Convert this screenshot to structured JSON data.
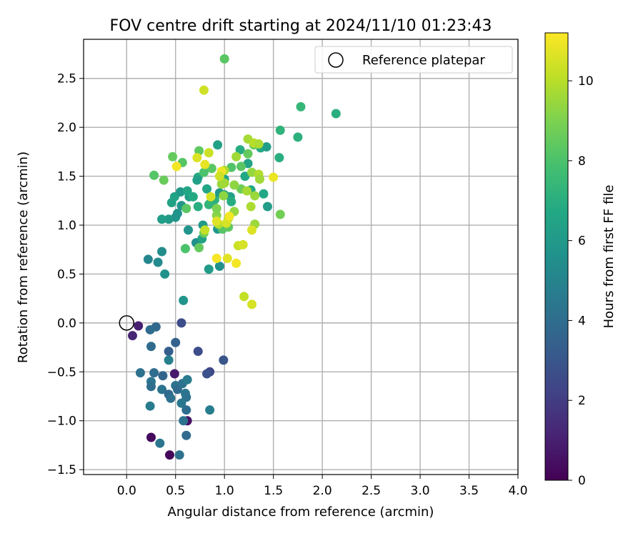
{
  "chart_data": {
    "type": "scatter",
    "title": "FOV centre drift starting at 2024/11/10 01:23:43",
    "xlabel": "Angular distance from reference (arcmin)",
    "ylabel": "Rotation from reference (arcmin)",
    "xlim": [
      -0.44,
      4.0
    ],
    "ylim": [
      -1.55,
      2.9
    ],
    "xticks": [
      0.0,
      0.5,
      1.0,
      1.5,
      2.0,
      2.5,
      3.0,
      3.5,
      4.0
    ],
    "xtick_labels": [
      "0.0",
      "0.5",
      "1.0",
      "1.5",
      "2.0",
      "2.5",
      "3.0",
      "3.5",
      "4.0"
    ],
    "yticks": [
      -1.5,
      -1.0,
      -0.5,
      0.0,
      0.5,
      1.0,
      1.5,
      2.0,
      2.5
    ],
    "ytick_labels": [
      "−1.5",
      "−1.0",
      "−0.5",
      "0.0",
      "0.5",
      "1.0",
      "1.5",
      "2.0",
      "2.5"
    ],
    "grid": true,
    "legend": {
      "placement": "top-right",
      "entries": [
        "Reference platepar"
      ]
    },
    "reference_point": {
      "x": 0.0,
      "y": 0.0,
      "label": "Reference platepar"
    },
    "colorbar": {
      "label": "Hours from first FF file",
      "colormap": "viridis",
      "range": [
        0,
        11.2
      ],
      "ticks": [
        0,
        2,
        4,
        6,
        8,
        10
      ],
      "tick_labels": [
        "0",
        "2",
        "4",
        "6",
        "8",
        "10"
      ]
    },
    "points": [
      [
        0.44,
        -1.35,
        0.2
      ],
      [
        0.25,
        -1.17,
        0.3
      ],
      [
        0.62,
        -1.0,
        0.5
      ],
      [
        0.49,
        -0.52,
        0.8
      ],
      [
        0.12,
        -0.03,
        1.0
      ],
      [
        0.06,
        -0.13,
        1.2
      ],
      [
        0.56,
        0.0,
        2.6
      ],
      [
        0.85,
        -0.5,
        2.4
      ],
      [
        0.73,
        -0.29,
        2.6
      ],
      [
        0.82,
        -0.52,
        2.8
      ],
      [
        0.99,
        -0.38,
        3.0
      ],
      [
        0.43,
        -0.29,
        3.3
      ],
      [
        0.5,
        -0.2,
        3.5
      ],
      [
        0.3,
        -0.04,
        3.8
      ],
      [
        0.24,
        -0.07,
        4.0
      ],
      [
        0.25,
        -0.24,
        3.9
      ],
      [
        0.14,
        -0.51,
        4.2
      ],
      [
        0.28,
        -0.51,
        4.0
      ],
      [
        0.37,
        -0.54,
        3.6
      ],
      [
        0.25,
        -0.6,
        4.4
      ],
      [
        0.25,
        -0.65,
        4.0
      ],
      [
        0.36,
        -0.68,
        4.3
      ],
      [
        0.43,
        -0.73,
        3.8
      ],
      [
        0.45,
        -0.77,
        4.1
      ],
      [
        0.5,
        -0.64,
        4.3
      ],
      [
        0.52,
        -0.68,
        3.9
      ],
      [
        0.57,
        -0.62,
        4.2
      ],
      [
        0.62,
        -0.58,
        4.6
      ],
      [
        0.6,
        -0.72,
        4.4
      ],
      [
        0.61,
        -0.76,
        4.2
      ],
      [
        0.56,
        -0.82,
        4.5
      ],
      [
        0.61,
        -0.89,
        4.0
      ],
      [
        0.85,
        -0.89,
        4.7
      ],
      [
        0.58,
        -1.0,
        4.3
      ],
      [
        0.61,
        -1.15,
        3.9
      ],
      [
        0.34,
        -1.23,
        4.4
      ],
      [
        0.54,
        -1.35,
        4.2
      ],
      [
        0.43,
        -0.38,
        4.8
      ],
      [
        0.24,
        -0.85,
        4.6
      ],
      [
        0.58,
        0.23,
        5.8
      ],
      [
        0.39,
        0.5,
        5.6
      ],
      [
        0.32,
        0.62,
        5.3
      ],
      [
        0.22,
        0.65,
        5.1
      ],
      [
        0.36,
        0.73,
        5.4
      ],
      [
        0.63,
        0.95,
        5.8
      ],
      [
        0.71,
        0.82,
        5.5
      ],
      [
        0.84,
        0.55,
        6.1
      ],
      [
        0.95,
        0.58,
        5.6
      ],
      [
        0.93,
        0.96,
        5.9
      ],
      [
        0.85,
        1.22,
        6.3
      ],
      [
        0.82,
        1.37,
        6.6
      ],
      [
        0.73,
        1.49,
        6.8
      ],
      [
        0.64,
        1.29,
        6.2
      ],
      [
        0.56,
        1.2,
        5.9
      ],
      [
        0.52,
        1.12,
        5.7
      ],
      [
        0.5,
        1.08,
        5.8
      ],
      [
        0.43,
        1.06,
        6.0
      ],
      [
        0.36,
        1.06,
        6.2
      ],
      [
        0.46,
        1.23,
        6.4
      ],
      [
        0.49,
        1.29,
        6.5
      ],
      [
        0.55,
        1.34,
        6.0
      ],
      [
        0.62,
        1.35,
        6.6
      ],
      [
        0.68,
        1.29,
        6.8
      ],
      [
        0.73,
        1.19,
        7.0
      ],
      [
        0.77,
        0.86,
        6.4
      ],
      [
        0.9,
        1.26,
        7.1
      ],
      [
        0.95,
        1.33,
        6.0
      ],
      [
        1.0,
        1.31,
        6.7
      ],
      [
        1.06,
        1.29,
        6.4
      ],
      [
        1.07,
        1.24,
        6.9
      ],
      [
        1.0,
        1.47,
        6.5
      ],
      [
        0.93,
        1.82,
        6.4
      ],
      [
        1.16,
        1.77,
        6.9
      ],
      [
        1.21,
        1.5,
        6.7
      ],
      [
        1.24,
        1.63,
        6.5
      ],
      [
        1.27,
        1.36,
        6.7
      ],
      [
        1.37,
        1.79,
        6.8
      ],
      [
        1.43,
        1.8,
        6.2
      ],
      [
        1.4,
        1.32,
        6.7
      ],
      [
        1.44,
        1.19,
        6.2
      ],
      [
        1.56,
        1.69,
        7.0
      ],
      [
        1.57,
        1.97,
        7.2
      ],
      [
        1.75,
        1.9,
        7.1
      ],
      [
        1.78,
        2.21,
        7.4
      ],
      [
        2.14,
        2.14,
        7.0
      ],
      [
        0.72,
        1.46,
        6.3
      ],
      [
        0.78,
        1.0,
        6.1
      ],
      [
        0.84,
        1.21,
        7.3
      ],
      [
        1.0,
        2.7,
        8.3
      ],
      [
        0.47,
        1.7,
        8.5
      ],
      [
        0.57,
        1.64,
        8.2
      ],
      [
        0.74,
        1.76,
        8.4
      ],
      [
        0.79,
        1.54,
        8.0
      ],
      [
        0.87,
        1.58,
        8.3
      ],
      [
        0.28,
        1.51,
        8.2
      ],
      [
        0.38,
        1.46,
        8.6
      ],
      [
        0.61,
        1.17,
        8.3
      ],
      [
        0.6,
        0.76,
        8.0
      ],
      [
        0.74,
        0.77,
        8.5
      ],
      [
        0.79,
        0.92,
        8.7
      ],
      [
        0.98,
        0.96,
        8.2
      ],
      [
        1.04,
        0.98,
        8.4
      ],
      [
        1.07,
        1.59,
        8.1
      ],
      [
        1.17,
        1.6,
        8.3
      ],
      [
        1.24,
        1.73,
        8.5
      ],
      [
        1.3,
        1.82,
        8.6
      ],
      [
        1.17,
        1.37,
        8.7
      ],
      [
        1.57,
        1.11,
        8.8
      ],
      [
        0.92,
        1.1,
        9.2
      ],
      [
        0.97,
        1.42,
        9.5
      ],
      [
        1.12,
        1.7,
        9.6
      ],
      [
        1.24,
        1.88,
        9.7
      ],
      [
        1.3,
        1.84,
        10.0
      ],
      [
        1.35,
        1.83,
        9.8
      ],
      [
        1.28,
        1.54,
        9.4
      ],
      [
        1.35,
        1.52,
        9.9
      ],
      [
        1.36,
        1.47,
        9.6
      ],
      [
        1.23,
        1.35,
        9.7
      ],
      [
        1.31,
        1.3,
        9.5
      ],
      [
        1.27,
        1.19,
        9.8
      ],
      [
        1.31,
        1.01,
        9.5
      ],
      [
        1.1,
        1.41,
        9.3
      ],
      [
        1.0,
        1.43,
        9.6
      ],
      [
        0.99,
        1.3,
        9.3
      ],
      [
        1.0,
        1.56,
        9.8
      ],
      [
        1.1,
        1.14,
        9.4
      ],
      [
        1.04,
        1.07,
        9.7
      ],
      [
        0.92,
        1.17,
        9.0
      ],
      [
        0.94,
        1.01,
        9.9
      ],
      [
        1.2,
        0.27,
        10.2
      ],
      [
        1.28,
        0.19,
        10.5
      ],
      [
        0.79,
        2.38,
        10.4
      ],
      [
        0.51,
        1.6,
        11.0
      ],
      [
        0.8,
        1.62,
        10.8
      ],
      [
        0.72,
        1.69,
        10.6
      ],
      [
        0.84,
        1.74,
        10.3
      ],
      [
        0.97,
        1.55,
        10.9
      ],
      [
        0.95,
        1.5,
        10.4
      ],
      [
        1.5,
        1.49,
        10.9
      ],
      [
        0.86,
        1.29,
        10.5
      ],
      [
        0.92,
        1.04,
        10.7
      ],
      [
        1.02,
        1.02,
        10.5
      ],
      [
        1.05,
        1.09,
        11.0
      ],
      [
        1.28,
        0.95,
        10.6
      ],
      [
        1.14,
        0.79,
        10.3
      ],
      [
        1.19,
        0.8,
        10.5
      ],
      [
        0.92,
        0.66,
        11.1
      ],
      [
        1.03,
        0.66,
        10.7
      ],
      [
        1.12,
        0.61,
        11.0
      ],
      [
        0.8,
        0.95,
        10.2
      ]
    ]
  }
}
